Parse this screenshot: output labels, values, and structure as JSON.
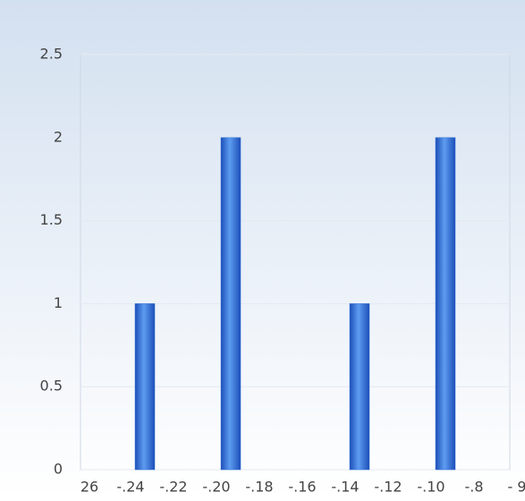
{
  "chart_data": {
    "type": "histogram",
    "xtick_labels": [
      "26",
      "-.24",
      "-.22",
      "-.20",
      "-.18",
      "-.16",
      "-.14",
      "-.12",
      "-.10",
      "-.8",
      "- 9"
    ],
    "values": [
      0,
      1,
      0,
      2,
      0,
      0,
      1,
      0,
      2,
      0
    ],
    "color": "#2f6fd8",
    "ylim": [
      0,
      2.5
    ],
    "yticks": [
      0,
      0.5,
      1,
      1.5,
      2,
      2.5
    ],
    "grid": true
  }
}
